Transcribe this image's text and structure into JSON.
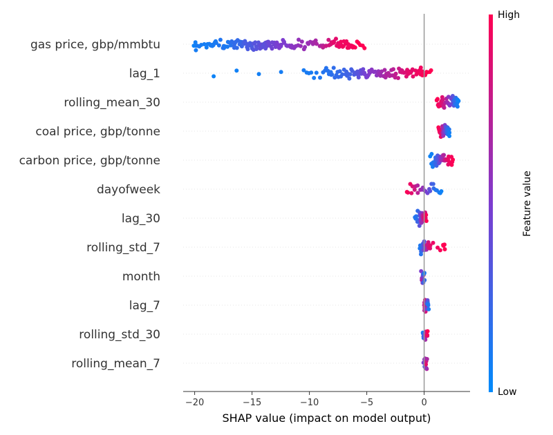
{
  "chart_data": {
    "type": "scatter",
    "subtype": "shap-beeswarm",
    "xlabel": "SHAP value (impact on model output)",
    "xlim": [
      -21,
      4
    ],
    "xticks": [
      -20,
      -15,
      -10,
      -5,
      0
    ],
    "grid": false,
    "colorbar": {
      "label": "Feature value",
      "high_label": "High",
      "low_label": "Low",
      "low_color": "#008bfb",
      "mid_color": "#7d3ccf",
      "high_color": "#ff0052"
    },
    "features": [
      {
        "name": "gas price, gbp/mmbtu",
        "range": [
          -20,
          -5.2
        ],
        "points": [
          [
            -20,
            0.05
          ],
          [
            -19.8,
            0.1
          ],
          [
            -19.0,
            0.08
          ],
          [
            -18.5,
            0.1
          ],
          [
            -18.2,
            0.1
          ],
          [
            -17.6,
            0.15
          ],
          [
            -17.2,
            0.1
          ],
          [
            -16.9,
            0.15
          ],
          [
            -16.6,
            0.2
          ],
          [
            -16.3,
            0.2
          ],
          [
            -16.0,
            0.2
          ],
          [
            -15.8,
            0.25
          ],
          [
            -15.5,
            0.3
          ],
          [
            -15.2,
            0.3
          ],
          [
            -15.0,
            0.3
          ],
          [
            -14.8,
            0.35
          ],
          [
            -14.5,
            0.35
          ],
          [
            -14.2,
            0.4
          ],
          [
            -14.0,
            0.35
          ],
          [
            -13.7,
            0.4
          ],
          [
            -13.4,
            0.45
          ],
          [
            -13.0,
            0.45
          ],
          [
            -12.7,
            0.5
          ],
          [
            -12.3,
            0.5
          ],
          [
            -12.0,
            0.5
          ],
          [
            -11.6,
            0.55
          ],
          [
            -11.2,
            0.55
          ],
          [
            -10.8,
            0.6
          ],
          [
            -10.2,
            0.6
          ],
          [
            -9.6,
            0.65
          ],
          [
            -9.0,
            0.7
          ],
          [
            -8.5,
            0.8
          ],
          [
            -8.1,
            0.85
          ],
          [
            -7.8,
            0.9
          ],
          [
            -7.5,
            0.9
          ],
          [
            -7.2,
            0.95
          ],
          [
            -6.9,
            0.95
          ],
          [
            -6.6,
            0.95
          ],
          [
            -6.3,
            0.95
          ],
          [
            -5.9,
            1
          ],
          [
            -5.2,
            1
          ]
        ]
      },
      {
        "name": "lag_1",
        "range": [
          -18.3,
          0.6
        ],
        "points": [
          [
            -18.3,
            0.05
          ],
          [
            -10.5,
            0.1
          ],
          [
            -9.6,
            0.1
          ],
          [
            -8.6,
            0.15
          ],
          [
            -8.2,
            0.15
          ],
          [
            -7.8,
            0.2
          ],
          [
            -7.3,
            0.2
          ],
          [
            -6.9,
            0.25
          ],
          [
            -6.5,
            0.25
          ],
          [
            -6.1,
            0.3
          ],
          [
            -5.8,
            0.35
          ],
          [
            -5.5,
            0.4
          ],
          [
            -5.2,
            0.45
          ],
          [
            -4.9,
            0.5
          ],
          [
            -4.6,
            0.55
          ],
          [
            -4.2,
            0.55
          ],
          [
            -3.9,
            0.6
          ],
          [
            -3.6,
            0.65
          ],
          [
            -3.2,
            0.7
          ],
          [
            -2.9,
            0.7
          ],
          [
            -2.5,
            0.75
          ],
          [
            -2.1,
            0.8
          ],
          [
            -1.8,
            0.85
          ],
          [
            -1.4,
            0.9
          ],
          [
            -1.0,
            0.9
          ],
          [
            -0.6,
            0.95
          ],
          [
            -0.3,
            0.95
          ],
          [
            0.1,
            1
          ],
          [
            0.6,
            1
          ]
        ]
      },
      {
        "name": "rolling_mean_30",
        "range": [
          1.0,
          3.0
        ],
        "points": [
          [
            1.1,
            1
          ],
          [
            1.3,
            0.95
          ],
          [
            1.5,
            0.9
          ],
          [
            1.7,
            0.8
          ],
          [
            1.9,
            0.7
          ],
          [
            2.1,
            0.6
          ],
          [
            2.3,
            0.5
          ],
          [
            2.5,
            0.35
          ],
          [
            2.7,
            0.2
          ],
          [
            2.9,
            0.1
          ],
          [
            3.0,
            0.05
          ]
        ]
      },
      {
        "name": "coal price, gbp/tonne",
        "range": [
          1.1,
          2.3
        ],
        "points": [
          [
            1.2,
            1
          ],
          [
            1.4,
            0.95
          ],
          [
            1.5,
            0.9
          ],
          [
            1.6,
            0.8
          ],
          [
            1.7,
            0.6
          ],
          [
            1.8,
            0.5
          ],
          [
            1.9,
            0.4
          ],
          [
            2.0,
            0.25
          ],
          [
            2.1,
            0.15
          ],
          [
            2.2,
            0.05
          ]
        ]
      },
      {
        "name": "carbon price, gbp/tonne",
        "range": [
          0.5,
          2.5
        ],
        "points": [
          [
            0.6,
            0.05
          ],
          [
            0.8,
            0.1
          ],
          [
            0.9,
            0.15
          ],
          [
            1.0,
            0.2
          ],
          [
            1.1,
            0.3
          ],
          [
            1.3,
            0.4
          ],
          [
            1.5,
            0.55
          ],
          [
            1.7,
            0.7
          ],
          [
            1.9,
            0.8
          ],
          [
            2.1,
            0.9
          ],
          [
            2.3,
            0.95
          ],
          [
            2.5,
            1
          ]
        ]
      },
      {
        "name": "dayofweek",
        "range": [
          -1.5,
          1.5
        ],
        "points": [
          [
            -1.5,
            1
          ],
          [
            -1.0,
            0.85
          ],
          [
            -0.5,
            0.7
          ],
          [
            0.0,
            0.55
          ],
          [
            0.5,
            0.35
          ],
          [
            1.0,
            0.15
          ],
          [
            1.5,
            0.05
          ]
        ]
      },
      {
        "name": "lag_30",
        "range": [
          -0.8,
          0.2
        ],
        "points": [
          [
            -0.8,
            0.1
          ],
          [
            -0.6,
            0.2
          ],
          [
            -0.4,
            0.3
          ],
          [
            -0.3,
            0.5
          ],
          [
            -0.2,
            0.6
          ],
          [
            -0.1,
            0.7
          ],
          [
            0.0,
            0.8
          ],
          [
            0.1,
            0.9
          ],
          [
            0.2,
            1
          ]
        ]
      },
      {
        "name": "rolling_std_7",
        "range": [
          -0.5,
          1.8
        ],
        "points": [
          [
            -0.4,
            0.1
          ],
          [
            -0.2,
            0.2
          ],
          [
            -0.1,
            0.3
          ],
          [
            0.0,
            0.4
          ],
          [
            0.1,
            0.6
          ],
          [
            0.3,
            0.8
          ],
          [
            0.6,
            0.9
          ],
          [
            1.6,
            1
          ],
          [
            1.8,
            1
          ]
        ]
      },
      {
        "name": "month",
        "range": [
          -0.2,
          0.0
        ],
        "points": [
          [
            -0.2,
            0.5
          ],
          [
            -0.15,
            0.7
          ],
          [
            -0.1,
            0.9
          ],
          [
            -0.05,
            0.3
          ],
          [
            0.0,
            0.1
          ]
        ]
      },
      {
        "name": "lag_7",
        "range": [
          0.0,
          0.4
        ],
        "points": [
          [
            0.0,
            0.7
          ],
          [
            0.1,
            0.8
          ],
          [
            0.15,
            0.9
          ],
          [
            0.2,
            0.6
          ],
          [
            0.3,
            0.2
          ],
          [
            0.4,
            0.1
          ]
        ]
      },
      {
        "name": "rolling_std_30",
        "range": [
          -0.1,
          0.3
        ],
        "points": [
          [
            -0.1,
            0.1
          ],
          [
            0.0,
            0.2
          ],
          [
            0.1,
            0.6
          ],
          [
            0.2,
            0.8
          ],
          [
            0.3,
            1
          ]
        ]
      },
      {
        "name": "rolling_mean_7",
        "range": [
          0.0,
          0.2
        ],
        "points": [
          [
            0.0,
            0.5
          ],
          [
            0.05,
            0.7
          ],
          [
            0.1,
            0.3
          ],
          [
            0.15,
            0.9
          ],
          [
            0.2,
            0.6
          ]
        ]
      }
    ]
  }
}
